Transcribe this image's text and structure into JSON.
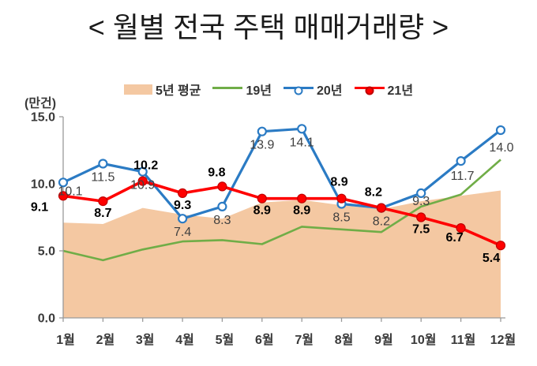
{
  "chart_data": {
    "type": "combo-area-line",
    "title": "< 월별 전국 주택 매매거래량 >",
    "unit_label": "(만건)",
    "categories": [
      "1월",
      "2월",
      "3월",
      "4월",
      "5월",
      "6월",
      "7월",
      "8월",
      "9월",
      "10월",
      "11월",
      "12월"
    ],
    "y_tick_labels": [
      "0.0",
      "5.0",
      "10.0",
      "15.0"
    ],
    "ylim": [
      0,
      15
    ],
    "grid": false,
    "legend_position": "top-center",
    "colors": {
      "axis": "#9a9a9a",
      "tick_label": "#3a3a3a",
      "blue_data_label": "#404040",
      "red_data_label": "#000000"
    },
    "series": [
      {
        "name": "5년 평균",
        "type": "area",
        "color": "#f4c8a2",
        "show_labels": false,
        "values": [
          7.1,
          7.0,
          8.2,
          7.7,
          7.4,
          8.6,
          8.8,
          8.4,
          8.1,
          8.7,
          9.1,
          9.5
        ]
      },
      {
        "name": "19년",
        "type": "line",
        "color": "#70ad47",
        "marker": "none",
        "show_labels": false,
        "values": [
          5.0,
          4.3,
          5.1,
          5.7,
          5.8,
          5.5,
          6.8,
          6.6,
          6.4,
          8.3,
          9.2,
          11.8
        ]
      },
      {
        "name": "20년",
        "type": "line",
        "color": "#2b7bc4",
        "marker": "open-circle",
        "marker_fill": "#ffffff",
        "show_labels": true,
        "values": [
          10.1,
          11.5,
          10.9,
          7.4,
          8.3,
          13.9,
          14.1,
          8.5,
          8.2,
          9.3,
          11.7,
          14.0
        ]
      },
      {
        "name": "21년",
        "type": "line",
        "color": "#ff0000",
        "marker": "filled-circle",
        "marker_stroke": "#c00000",
        "show_labels": true,
        "values": [
          9.1,
          8.7,
          10.2,
          9.3,
          9.8,
          8.9,
          8.9,
          8.9,
          8.2,
          7.5,
          6.7,
          5.4
        ]
      }
    ]
  }
}
